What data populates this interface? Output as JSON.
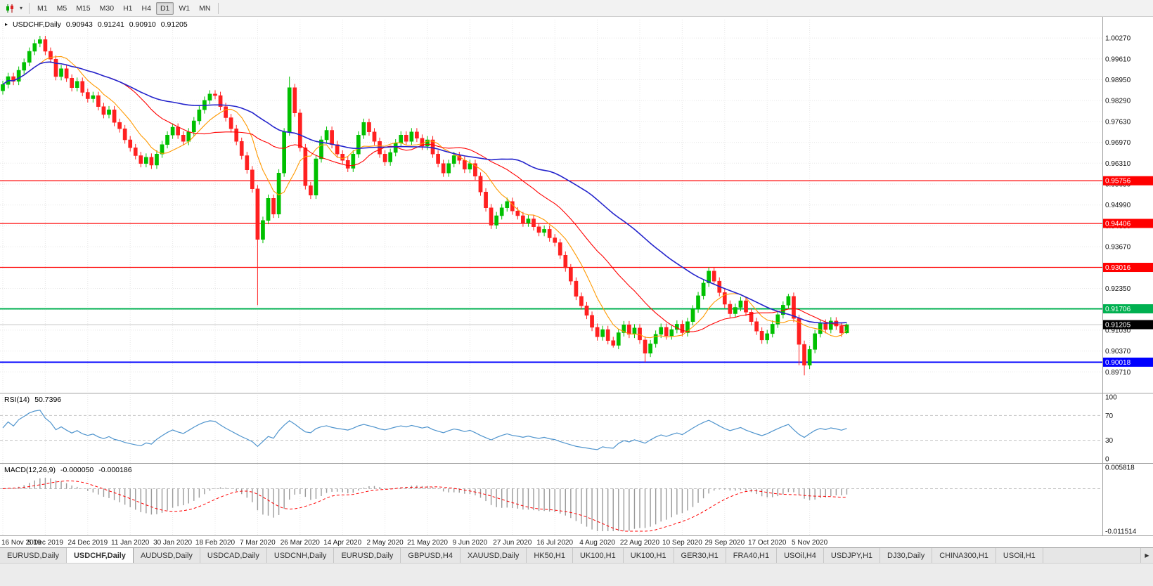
{
  "toolbar": {
    "timeframes": [
      {
        "label": "M1",
        "active": false
      },
      {
        "label": "M5",
        "active": false
      },
      {
        "label": "M15",
        "active": false
      },
      {
        "label": "M30",
        "active": false
      },
      {
        "label": "H1",
        "active": false
      },
      {
        "label": "H4",
        "active": false
      },
      {
        "label": "D1",
        "active": true
      },
      {
        "label": "W1",
        "active": false
      },
      {
        "label": "MN",
        "active": false
      }
    ]
  },
  "icons": {
    "chart_dropdown_caret": "▾",
    "title_marker": "▸",
    "tab_scroll_right": "▶"
  },
  "chart": {
    "symbol_period": "USDCHF,Daily",
    "ohlc": {
      "open": "0.90943",
      "high": "0.91241",
      "low": "0.90910",
      "close": "0.91205"
    }
  },
  "chart_data": {
    "type": "candlestick",
    "symbol": "USDCHF",
    "period": "Daily",
    "x_labels": [
      "16 Nov 2019",
      "5 Dec 2019",
      "24 Dec 2019",
      "11 Jan 2020",
      "30 Jan 2020",
      "18 Feb 2020",
      "7 Mar 2020",
      "26 Mar 2020",
      "14 Apr 2020",
      "2 May 2020",
      "21 May 2020",
      "9 Jun 2020",
      "27 Jun 2020",
      "16 Jul 2020",
      "4 Aug 2020",
      "22 Aug 2020",
      "10 Sep 2020",
      "29 Sep 2020",
      "17 Oct 2020",
      "5 Nov 2020"
    ],
    "bars_per_label": 8,
    "price_range": [
      0.8905,
      1.0085
    ],
    "y_ticks": [
      "1.00270",
      "0.99610",
      "0.98950",
      "0.98290",
      "0.97630",
      "0.96970",
      "0.96310",
      "0.95650",
      "0.94990",
      "0.94330",
      "0.93670",
      "0.93010",
      "0.92350",
      "0.91690",
      "0.91030",
      "0.90370",
      "0.89710"
    ],
    "first_open": 0.986,
    "open_equals_previous_close": true,
    "default_wick": 0.0012,
    "closes": [
      0.988,
      0.9905,
      0.989,
      0.9925,
      0.995,
      0.9985,
      1.001,
      1.0022,
      0.9985,
      0.996,
      0.9905,
      0.993,
      0.99,
      0.987,
      0.989,
      0.9855,
      0.9835,
      0.9845,
      0.981,
      0.9785,
      0.98,
      0.976,
      0.974,
      0.9705,
      0.968,
      0.9655,
      0.963,
      0.965,
      0.9625,
      0.966,
      0.969,
      0.972,
      0.9745,
      0.972,
      0.97,
      0.973,
      0.9765,
      0.98,
      0.983,
      0.985,
      0.9845,
      0.981,
      0.9775,
      0.974,
      0.97,
      0.9655,
      0.961,
      0.955,
      0.939,
      0.945,
      0.952,
      0.947,
      0.96,
      0.973,
      0.987,
      0.979,
      0.968,
      0.956,
      0.953,
      0.9645,
      0.9705,
      0.9735,
      0.969,
      0.966,
      0.964,
      0.9615,
      0.966,
      0.972,
      0.976,
      0.973,
      0.97,
      0.966,
      0.9635,
      0.9665,
      0.9695,
      0.972,
      0.97,
      0.973,
      0.971,
      0.9685,
      0.9705,
      0.966,
      0.963,
      0.96,
      0.963,
      0.9655,
      0.964,
      0.9612,
      0.963,
      0.959,
      0.954,
      0.949,
      0.9435,
      0.9465,
      0.949,
      0.951,
      0.948,
      0.9465,
      0.9442,
      0.9455,
      0.943,
      0.9412,
      0.9422,
      0.9395,
      0.938,
      0.934,
      0.93,
      0.9258,
      0.921,
      0.918,
      0.915,
      0.9112,
      0.9082,
      0.9105,
      0.907,
      0.9055,
      0.9095,
      0.912,
      0.909,
      0.911,
      0.9072,
      0.903,
      0.906,
      0.909,
      0.9112,
      0.9085,
      0.9105,
      0.9122,
      0.9095,
      0.913,
      0.917,
      0.9212,
      0.9252,
      0.929,
      0.9258,
      0.9222,
      0.9185,
      0.9155,
      0.9175,
      0.9196,
      0.916,
      0.913,
      0.91,
      0.9072,
      0.9092,
      0.9122,
      0.9152,
      0.9182,
      0.921,
      0.914,
      0.9058,
      0.8992,
      0.9042,
      0.9092,
      0.9125,
      0.9105,
      0.9132,
      0.9116,
      0.9094,
      0.91205
    ],
    "wick_overrides": {
      "48": {
        "low": 0.9182
      },
      "54": {
        "high": 0.9905
      },
      "115": {
        "low": 0.9048
      },
      "121": {
        "low": 0.9002
      },
      "133": {
        "high": 0.9302
      },
      "148": {
        "high": 0.9218
      },
      "150": {
        "low": 0.8992
      },
      "151": {
        "low": 0.896
      }
    },
    "last_bar": {
      "open": 0.90943,
      "high": 0.91241,
      "low": 0.9091,
      "close": 0.91205
    },
    "colors": {
      "bull": "#00c000",
      "bear": "#ff2020",
      "grid": "#e7e7e7",
      "axis_text": "#111111",
      "divider": "#a0a0a0",
      "bid_line": "#c9c9c9"
    },
    "moving_averages": [
      {
        "period": 8,
        "color": "#ff9900"
      },
      {
        "period": 21,
        "color": "#ff0000"
      },
      {
        "period": 45,
        "color": "#2424cc"
      }
    ],
    "horizontal_lines": [
      {
        "label": "0.95756",
        "price": 0.95756,
        "color": "#ff0000",
        "width": 1.2
      },
      {
        "label": "0.94406",
        "price": 0.94406,
        "color": "#ff0000",
        "width": 1.2
      },
      {
        "label": "0.93016",
        "price": 0.93016,
        "color": "#ff0000",
        "width": 1.2
      },
      {
        "label": "0.91706",
        "price": 0.91706,
        "color": "#00b050",
        "width": 2
      },
      {
        "label": "0.90018",
        "price": 0.90018,
        "color": "#0000ff",
        "width": 2
      }
    ],
    "current_price": {
      "label": "0.91205",
      "price": 0.91205,
      "bg": "#000000",
      "text": "#ffffff"
    },
    "indicators": {
      "rsi": {
        "label": "RSI(14)",
        "value": "50.7396",
        "period": 14,
        "levels": [
          70,
          30
        ],
        "range": [
          0,
          100
        ],
        "ticks": [
          "100",
          "70",
          "30",
          "0"
        ],
        "color": "#4f94cd"
      },
      "macd": {
        "label": "MACD(12,26,9)",
        "value_main": "-0.000050",
        "value_signal": "-0.000186",
        "fast": 12,
        "slow": 26,
        "signal": 9,
        "range": [
          -0.011514,
          0.005818
        ],
        "ticks": [
          "0.005818",
          "-0.011514"
        ],
        "hist_color": "#9a9a9a",
        "signal_color": "#ff0000"
      }
    }
  },
  "tabbar": {
    "tabs": [
      {
        "label": "EURUSD,Daily",
        "active": false
      },
      {
        "label": "USDCHF,Daily",
        "active": true
      },
      {
        "label": "AUDUSD,Daily",
        "active": false
      },
      {
        "label": "USDCAD,Daily",
        "active": false
      },
      {
        "label": "USDCNH,Daily",
        "active": false
      },
      {
        "label": "EURUSD,Daily",
        "active": false
      },
      {
        "label": "GBPUSD,H4",
        "active": false
      },
      {
        "label": "XAUUSD,Daily",
        "active": false
      },
      {
        "label": "HK50,H1",
        "active": false
      },
      {
        "label": "UK100,H1",
        "active": false
      },
      {
        "label": "UK100,H1",
        "active": false
      },
      {
        "label": "GER30,H1",
        "active": false
      },
      {
        "label": "FRA40,H1",
        "active": false
      },
      {
        "label": "USOil,H4",
        "active": false
      },
      {
        "label": "USDJPY,H1",
        "active": false
      },
      {
        "label": "DJ30,Daily",
        "active": false
      },
      {
        "label": "CHINA300,H1",
        "active": false
      },
      {
        "label": "USOil,H1",
        "active": false
      }
    ]
  }
}
